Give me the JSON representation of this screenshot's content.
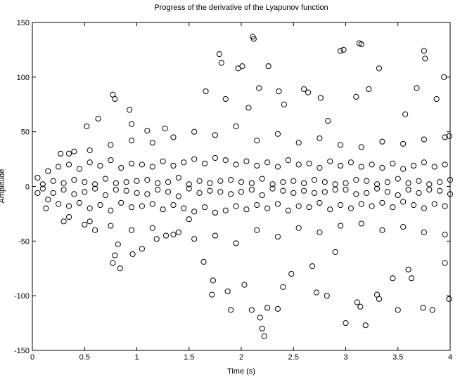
{
  "chart_data": {
    "type": "scatter",
    "title": "Progress of the derivative of the Lyapunov function",
    "xlabel": "Time (s)",
    "ylabel": "Amplitude",
    "xlim": [
      0,
      4
    ],
    "ylim": [
      -150,
      150
    ],
    "xticks": [
      0,
      0.5,
      1,
      1.5,
      2,
      2.5,
      3,
      3.5,
      4
    ],
    "yticks": [
      -150,
      -100,
      -50,
      0,
      50,
      100,
      150
    ],
    "color": "#000000",
    "marker": "open-circle",
    "x": [
      0.05,
      0.15,
      0.25,
      0.35,
      0.45,
      0.55,
      0.65,
      0.75,
      0.85,
      0.95,
      1.05,
      1.15,
      1.25,
      1.35,
      1.45,
      1.55,
      1.65,
      1.75,
      1.85,
      1.95,
      2.05,
      2.15,
      2.25,
      2.35,
      2.45,
      2.55,
      2.65,
      2.75,
      2.85,
      2.95,
      3.05,
      3.15,
      3.25,
      3.35,
      3.45,
      3.55,
      3.65,
      3.75,
      3.85,
      3.95,
      0.05,
      0.15,
      0.25,
      0.35,
      0.45,
      0.55,
      0.65,
      0.75,
      0.85,
      0.95,
      1.05,
      1.15,
      1.25,
      1.35,
      1.45,
      1.55,
      1.65,
      1.75,
      1.85,
      1.95,
      2.05,
      2.15,
      2.25,
      2.35,
      2.45,
      2.55,
      2.65,
      2.75,
      2.85,
      2.95,
      3.05,
      3.15,
      3.25,
      3.35,
      3.45,
      3.55,
      3.65,
      3.75,
      3.85,
      3.95,
      0.1,
      0.2,
      0.3,
      0.4,
      0.5,
      0.6,
      0.7,
      0.8,
      0.9,
      1.0,
      1.1,
      1.2,
      1.3,
      1.4,
      1.5,
      1.6,
      1.7,
      1.8,
      1.9,
      2.0,
      2.1,
      2.2,
      2.3,
      2.4,
      2.5,
      2.6,
      2.7,
      2.8,
      2.9,
      3.0,
      3.1,
      3.2,
      3.3,
      3.4,
      3.5,
      3.6,
      3.7,
      3.8,
      3.9,
      4.0,
      0.1,
      0.2,
      0.3,
      0.4,
      0.5,
      0.6,
      0.7,
      0.8,
      0.9,
      1.0,
      1.1,
      1.2,
      1.3,
      1.4,
      1.5,
      1.6,
      1.7,
      1.8,
      1.9,
      2.0,
      2.1,
      2.2,
      2.3,
      2.4,
      2.5,
      2.6,
      2.7,
      2.8,
      2.9,
      3.0,
      3.1,
      3.2,
      3.3,
      3.4,
      3.5,
      3.6,
      3.7,
      3.8,
      3.9,
      4.0,
      0.35,
      0.55,
      0.75,
      0.95,
      1.15,
      1.35,
      1.55,
      1.75,
      1.95,
      2.15,
      2.35,
      2.55,
      2.75,
      2.95,
      3.15,
      3.35,
      3.55,
      3.75,
      3.95,
      0.35,
      0.55,
      0.75,
      0.95,
      1.15,
      1.35,
      1.55,
      1.75,
      1.95,
      2.15,
      2.35,
      2.55,
      2.75,
      2.95,
      3.15,
      3.35,
      3.55,
      3.75,
      3.95,
      0.77,
      0.79,
      0.93,
      0.95,
      1.1,
      1.27,
      1.66,
      1.79,
      1.81,
      1.85,
      1.97,
      2.11,
      2.12,
      2.01,
      2.07,
      2.17,
      2.26,
      2.36,
      2.41,
      2.6,
      2.64,
      2.76,
      2.83,
      2.95,
      2.98,
      3.13,
      3.15,
      3.1,
      3.22,
      3.32,
      3.57,
      3.68,
      3.75,
      3.76,
      3.87,
      3.94,
      3.99,
      0.63,
      0.52,
      0.27,
      0.4,
      0.77,
      0.79,
      0.84,
      0.82,
      0.96,
      1.05,
      1.19,
      1.28,
      1.64,
      1.73,
      1.72,
      1.87,
      1.9,
      2.03,
      2.1,
      2.18,
      2.2,
      2.22,
      2.25,
      2.35,
      2.4,
      2.48,
      2.68,
      2.72,
      2.82,
      2.9,
      3.0,
      3.11,
      3.14,
      3.19,
      3.3,
      3.32,
      3.45,
      3.5,
      3.6,
      3.63,
      3.74,
      3.83,
      3.95,
      3.99,
      0.13,
      0.3,
      0.5,
      0.6,
      1.4,
      1.5
    ],
    "y": [
      8,
      14,
      18,
      20,
      16,
      22,
      19,
      24,
      17,
      21,
      20,
      18,
      23,
      19,
      22,
      25,
      21,
      26,
      24,
      20,
      23,
      19,
      22,
      18,
      24,
      20,
      21,
      17,
      23,
      19,
      22,
      18,
      20,
      17,
      21,
      16,
      19,
      22,
      18,
      20,
      -6,
      -12,
      -16,
      -18,
      -15,
      -20,
      -17,
      -22,
      -15,
      -19,
      -18,
      -16,
      -21,
      -17,
      -20,
      -23,
      -19,
      -24,
      -22,
      -18,
      -21,
      -17,
      -20,
      -16,
      -22,
      -18,
      -19,
      -15,
      -21,
      -17,
      -20,
      -16,
      -18,
      -15,
      -19,
      -14,
      -17,
      -20,
      -16,
      -18,
      2,
      5,
      -3,
      6,
      4,
      -2,
      7,
      3,
      -4,
      5,
      6,
      -3,
      4,
      8,
      -2,
      5,
      3,
      -5,
      6,
      4,
      -3,
      7,
      2,
      -4,
      5,
      3,
      -6,
      4,
      2,
      -3,
      6,
      5,
      -2,
      4,
      7,
      -3,
      5,
      2,
      -4,
      6,
      -2,
      -6,
      3,
      -7,
      -5,
      2,
      -8,
      -3,
      4,
      -6,
      -7,
      3,
      -5,
      -9,
      2,
      -6,
      -4,
      5,
      -7,
      -5,
      3,
      -8,
      -2,
      4,
      -6,
      -4,
      6,
      -5,
      -3,
      3,
      -7,
      -6,
      2,
      -5,
      -8,
      3,
      -6,
      -3,
      4,
      -7,
      30,
      33,
      38,
      42,
      40,
      45,
      50,
      47,
      55,
      42,
      48,
      40,
      44,
      38,
      36,
      41,
      39,
      43,
      45,
      -28,
      -32,
      -36,
      -40,
      -38,
      -44,
      -48,
      -45,
      -52,
      -40,
      -46,
      -38,
      -42,
      -36,
      -34,
      -40,
      -37,
      -42,
      -44,
      84,
      80,
      70,
      57,
      51,
      53,
      87,
      121,
      113,
      80,
      108,
      137,
      135,
      110,
      72,
      90,
      110,
      87,
      75,
      89,
      86,
      81,
      60,
      124,
      125,
      131,
      130,
      82,
      89,
      108,
      66,
      90,
      124,
      117,
      80,
      100,
      46,
      62,
      55,
      30,
      32,
      -70,
      -63,
      -75,
      -53,
      -62,
      -57,
      -48,
      -45,
      -69,
      -86,
      -99,
      -96,
      -113,
      -90,
      -113,
      -120,
      -130,
      -137,
      -111,
      -112,
      -92,
      -80,
      -73,
      -97,
      -100,
      -60,
      -125,
      -106,
      -110,
      -127,
      -99,
      -103,
      -84,
      -113,
      -76,
      -84,
      -111,
      -113,
      -70,
      -103,
      -20,
      -32,
      -35,
      -40,
      -42,
      -30
    ]
  }
}
